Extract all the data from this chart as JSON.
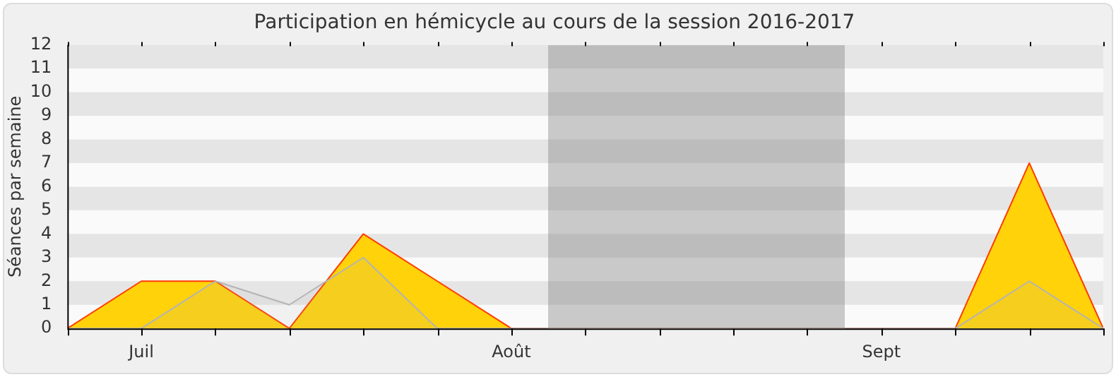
{
  "chart_data": {
    "type": "area",
    "title": "Participation en hémicycle au cours de la session 2016-2017",
    "ylabel": "Séances par semaine",
    "categories": [
      null,
      "Juil",
      null,
      null,
      null,
      null,
      "Août",
      null,
      null,
      null,
      null,
      "Sept",
      null,
      null,
      null
    ],
    "ylim": [
      0,
      12
    ],
    "yticks": [
      0,
      1,
      2,
      3,
      4,
      5,
      6,
      7,
      8,
      9,
      10,
      11,
      12
    ],
    "legend": false,
    "marker": "none",
    "series": [
      {
        "color": "#ffd20a",
        "values": [
          0,
          2,
          2,
          0,
          4,
          2,
          0,
          0,
          0,
          0,
          0,
          0,
          0,
          7,
          0
        ]
      },
      {
        "color": "#b4b4b4",
        "values": [
          0,
          0,
          2,
          1,
          3,
          0,
          0,
          0,
          0,
          0,
          0,
          0,
          0,
          2,
          0
        ]
      }
    ]
  }
}
